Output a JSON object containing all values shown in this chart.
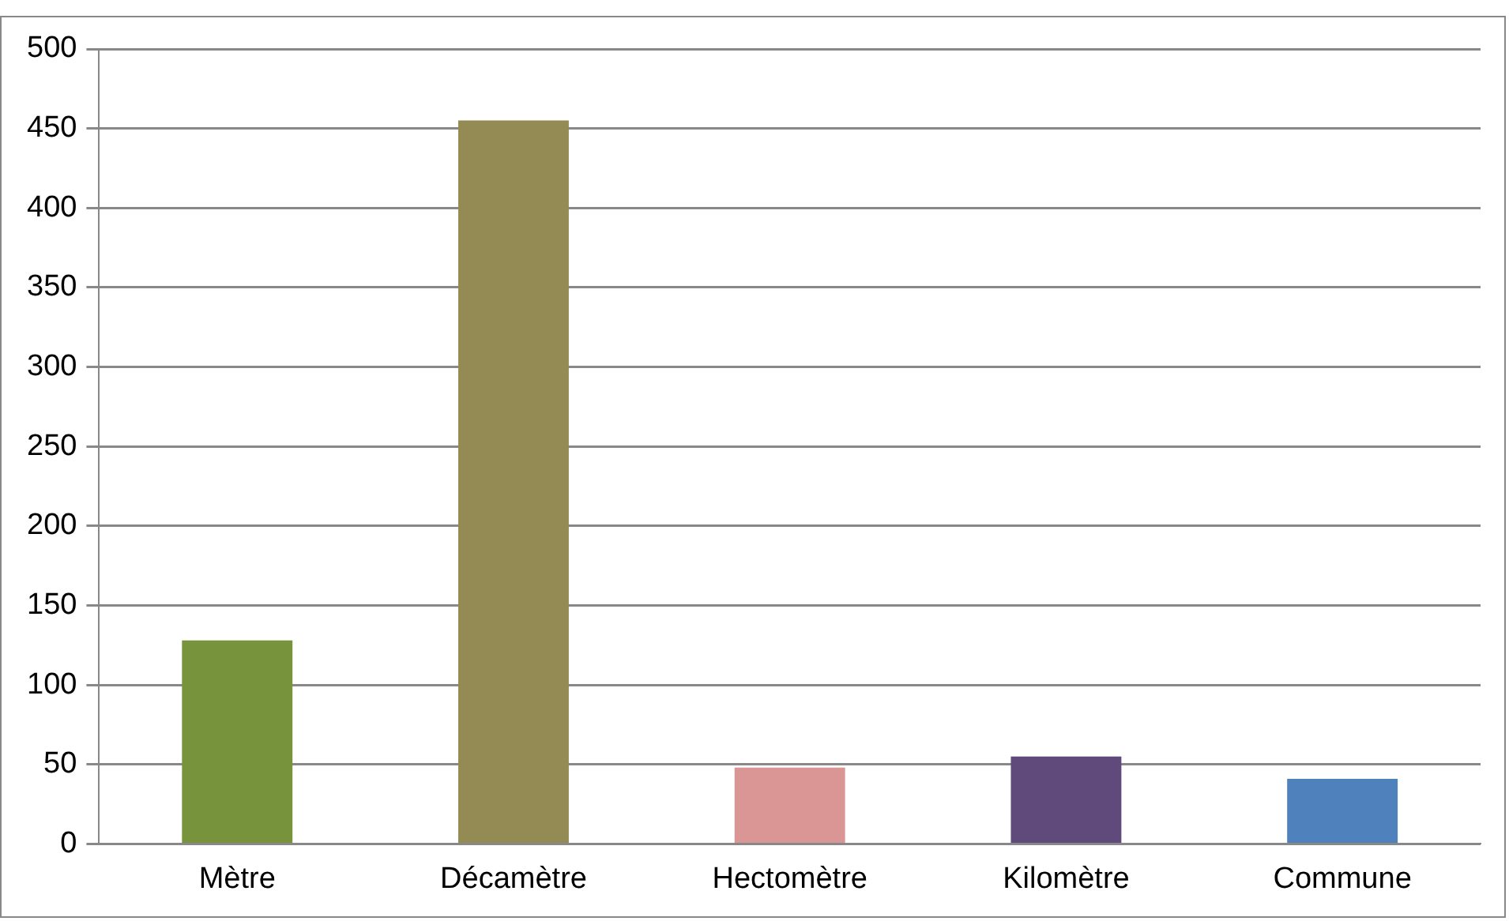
{
  "chart_data": {
    "type": "bar",
    "categories": [
      "Mètre",
      "Décamètre",
      "Hectomètre",
      "Kilomètre",
      "Commune"
    ],
    "values": [
      128,
      455,
      48,
      55,
      41
    ],
    "colors": [
      "#77933c",
      "#948a54",
      "#d99694",
      "#604a7b",
      "#4f81bd"
    ],
    "ylim": [
      0,
      500
    ],
    "yticks": [
      0,
      50,
      100,
      150,
      200,
      250,
      300,
      350,
      400,
      450,
      500
    ],
    "grid": "y",
    "legend": false
  }
}
